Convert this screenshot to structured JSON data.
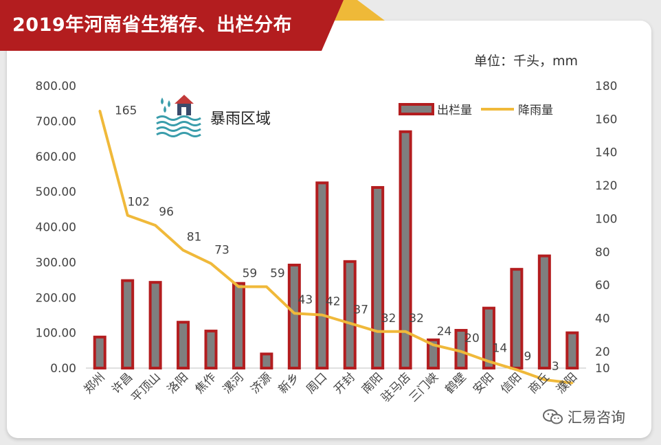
{
  "title": "2019年河南省生猪存、出栏分布",
  "unit_label": "单位：千头，mm",
  "flood_label": "暴雨区域",
  "watermark": "汇易咨询",
  "colors": {
    "banner_red": "#b31d1f",
    "banner_gold": "#efb938",
    "bar_fill": "#7f7f7f",
    "bar_border": "#b31d1f",
    "line": "#f0b93a",
    "flood_icon": "#3a9dab",
    "house_roof": "#c23a3a"
  },
  "icons": [
    "rain-flood-icon",
    "wechat-icon"
  ],
  "chart_data": {
    "type": "bar",
    "categories": [
      "郑州",
      "许昌",
      "平顶山",
      "洛阳",
      "焦作",
      "漯河",
      "济源",
      "新乡",
      "周口",
      "开封",
      "南阳",
      "驻马店",
      "三门峡",
      "鹤壁",
      "安阳",
      "信阳",
      "商丘",
      "濮阳"
    ],
    "series": [
      {
        "name": "出栏量",
        "type": "bar",
        "axis": "left",
        "values": [
          88,
          248,
          243,
          130,
          105,
          240,
          40,
          292,
          525,
          302,
          512,
          670,
          80,
          107,
          170,
          280,
          318,
          100
        ]
      },
      {
        "name": "降雨量",
        "type": "line",
        "axis": "right",
        "values": [
          165,
          102,
          96,
          81,
          73,
          59,
          59,
          43,
          42,
          37,
          32,
          32,
          24,
          20,
          14,
          9,
          3,
          1
        ],
        "labels": [
          "165",
          "102",
          "96",
          "81",
          "73",
          "59",
          "59",
          "43",
          "42",
          "37",
          "32",
          "32",
          "24",
          "20",
          "14",
          "9",
          "3",
          ""
        ]
      }
    ],
    "y_left": {
      "min": 0,
      "max": 800,
      "step": 100,
      "tick_labels": [
        "0.00",
        "100.00",
        "200.00",
        "300.00",
        "400.00",
        "500.00",
        "600.00",
        "700.00",
        "800.00"
      ]
    },
    "y_right": {
      "min": 10,
      "max": 180,
      "tick_labels": [
        "10",
        "20",
        "40",
        "60",
        "80",
        "100",
        "120",
        "140",
        "160",
        "180"
      ],
      "tick_values": [
        10,
        20,
        40,
        60,
        80,
        100,
        120,
        140,
        160,
        180
      ]
    },
    "legend": {
      "position": "top-right",
      "entries": [
        "出栏量",
        "降雨量"
      ]
    },
    "grid": false
  }
}
